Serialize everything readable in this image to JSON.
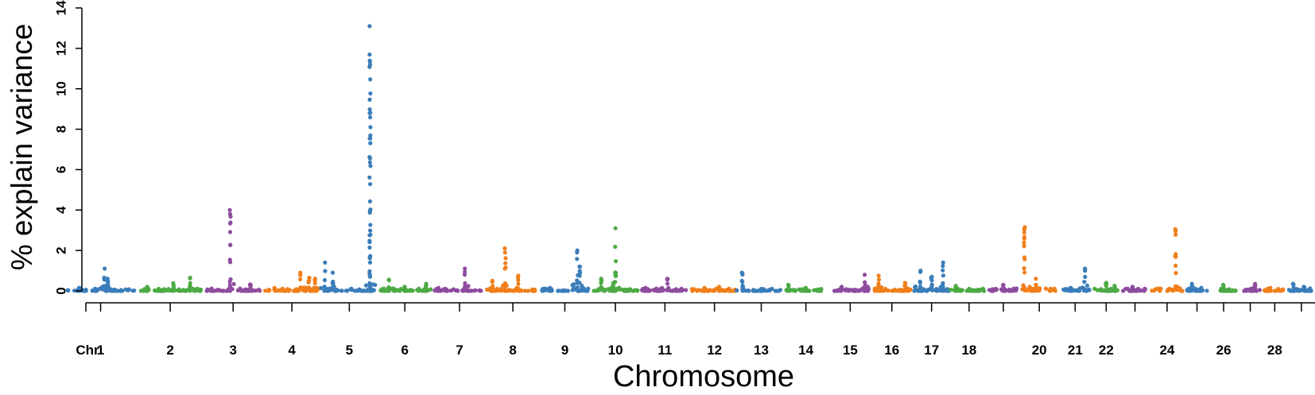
{
  "chart_data": {
    "type": "scatter",
    "title": "",
    "xlabel": "Chromosome",
    "ylabel": "% explain variance",
    "ylim": [
      0,
      14
    ],
    "yticks": [
      "0",
      "2",
      "4",
      "6",
      "8",
      "10",
      "12",
      "14"
    ],
    "x_prefix_label": "Chr",
    "grid": false,
    "legend": "none",
    "palette": [
      "#3A7DBA",
      "#4DAA44",
      "#8E4C9E",
      "#F07F1A"
    ],
    "chromosomes": [
      {
        "chr": "1",
        "label": "1",
        "peaks": [
          [
            0.2,
            0.15
          ],
          [
            0.55,
            1.1
          ],
          [
            0.6,
            0.6
          ]
        ]
      },
      {
        "chr": "2",
        "label": "2",
        "peaks": [
          [
            0.15,
            0.2
          ],
          [
            0.55,
            0.38
          ],
          [
            0.8,
            0.65
          ]
        ]
      },
      {
        "chr": "3",
        "label": "3",
        "peaks": [
          [
            0.45,
            4.0
          ],
          [
            0.8,
            0.32
          ]
        ]
      },
      {
        "chr": "4",
        "label": "4",
        "peaks": [
          [
            0.2,
            0.15
          ],
          [
            0.65,
            0.9
          ],
          [
            0.8,
            0.65
          ],
          [
            0.9,
            0.6
          ]
        ]
      },
      {
        "chr": "5",
        "label": "5",
        "peaks": [
          [
            0.05,
            1.4
          ],
          [
            0.2,
            0.9
          ],
          [
            0.88,
            13.1
          ]
        ]
      },
      {
        "chr": "6",
        "label": "6",
        "peaks": [
          [
            0.2,
            0.55
          ],
          [
            0.5,
            0.2
          ],
          [
            0.9,
            0.35
          ]
        ]
      },
      {
        "chr": "7",
        "label": "7",
        "peaks": [
          [
            0.1,
            0.15
          ],
          [
            0.6,
            1.1
          ]
        ]
      },
      {
        "chr": "8",
        "label": "8",
        "peaks": [
          [
            0.1,
            0.5
          ],
          [
            0.35,
            2.1
          ],
          [
            0.6,
            0.75
          ]
        ]
      },
      {
        "chr": "9",
        "label": "9",
        "peaks": [
          [
            0.2,
            0.15
          ],
          [
            0.75,
            2.0
          ],
          [
            0.8,
            1.2
          ]
        ]
      },
      {
        "chr": "10",
        "label": "10",
        "peaks": [
          [
            0.2,
            0.6
          ],
          [
            0.45,
            0.4
          ],
          [
            0.5,
            3.1
          ]
        ]
      },
      {
        "chr": "11",
        "label": "11",
        "peaks": [
          [
            0.1,
            0.15
          ],
          [
            0.55,
            0.6
          ]
        ]
      },
      {
        "chr": "12",
        "label": "12",
        "peaks": [
          [
            0.3,
            0.15
          ],
          [
            0.6,
            0.2
          ]
        ]
      },
      {
        "chr": "13",
        "label": "13",
        "peaks": [
          [
            0.05,
            0.9
          ],
          [
            0.5,
            0.1
          ]
        ]
      },
      {
        "chr": "14",
        "label": "14",
        "peaks": [
          [
            0.1,
            0.3
          ],
          [
            0.5,
            0.15
          ]
        ]
      },
      {
        "chr": "15",
        "label": "15",
        "peaks": [
          [
            0.3,
            0.2
          ],
          [
            0.85,
            0.8
          ]
        ]
      },
      {
        "chr": "16",
        "label": "16",
        "peaks": [
          [
            0.15,
            0.75
          ],
          [
            0.85,
            0.4
          ]
        ]
      },
      {
        "chr": "17",
        "label": "17",
        "peaks": [
          [
            0.2,
            1.0
          ],
          [
            0.5,
            0.7
          ],
          [
            0.8,
            1.4
          ]
        ]
      },
      {
        "chr": "18",
        "label": "18",
        "peaks": [
          [
            0.1,
            0.25
          ],
          [
            0.5,
            0.1
          ]
        ]
      },
      {
        "chr": "19",
        "label": "",
        "peaks": [
          [
            0.5,
            0.3
          ]
        ]
      },
      {
        "chr": "20",
        "label": "20",
        "peaks": [
          [
            0.1,
            3.15
          ],
          [
            0.4,
            0.6
          ]
        ]
      },
      {
        "chr": "21",
        "label": "21",
        "peaks": [
          [
            0.35,
            0.15
          ],
          [
            0.8,
            1.1
          ]
        ]
      },
      {
        "chr": "22",
        "label": "22",
        "peaks": [
          [
            0.5,
            0.4
          ],
          [
            0.8,
            0.25
          ]
        ]
      },
      {
        "chr": "23",
        "label": "",
        "peaks": [
          [
            0.4,
            0.2
          ]
        ]
      },
      {
        "chr": "24",
        "label": "24",
        "peaks": [
          [
            0.75,
            3.05
          ]
        ]
      },
      {
        "chr": "25",
        "label": "",
        "peaks": [
          [
            0.3,
            0.35
          ],
          [
            0.7,
            0.15
          ]
        ]
      },
      {
        "chr": "26",
        "label": "26",
        "peaks": [
          [
            0.5,
            0.3
          ]
        ]
      },
      {
        "chr": "27",
        "label": "",
        "peaks": [
          [
            0.7,
            0.35
          ]
        ]
      },
      {
        "chr": "28",
        "label": "28",
        "peaks": [
          [
            0.3,
            0.15
          ]
        ]
      },
      {
        "chr": "29",
        "label": "",
        "peaks": [
          [
            0.2,
            0.35
          ],
          [
            0.6,
            0.2
          ]
        ]
      }
    ]
  }
}
